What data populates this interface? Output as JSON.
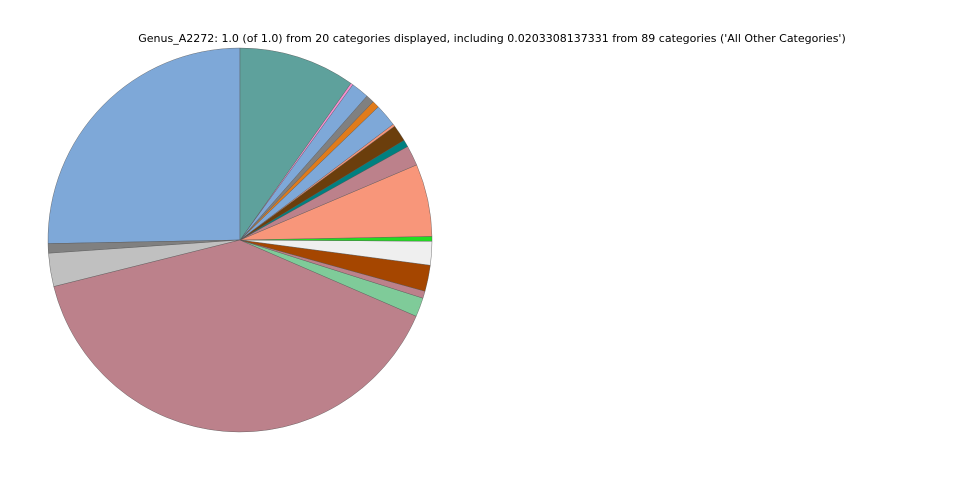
{
  "chart_data": {
    "type": "pie",
    "title": "Genus_A2272: 1.0 (of 1.0) from 20 categories displayed, including 0.0203308137331 from 89 categories ('All Other Categories')",
    "start_angle": 90,
    "direction": "counterclockwise",
    "values": [
      0.253,
      0.008,
      0.028,
      0.396,
      0.016,
      0.006,
      0.022,
      0.02,
      0.004,
      0.061,
      0.017,
      0.006,
      0.014,
      0.002,
      0.019,
      0.006,
      0.007,
      0.015,
      0.002,
      0.098
    ],
    "colors": [
      "#7ea8d8",
      "#808080",
      "#c0c0c0",
      "#bc818b",
      "#7fcb99",
      "#bc818b",
      "#a54600",
      "#efefef",
      "#22dd22",
      "#f8967a",
      "#bc818b",
      "#008080",
      "#6b3e0c",
      "#f8967a",
      "#7ea8d8",
      "#e07b1b",
      "#808080",
      "#7ea8d8",
      "#f590d0",
      "#5ea19c"
    ]
  }
}
